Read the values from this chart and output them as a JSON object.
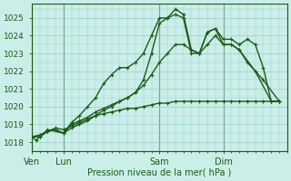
{
  "xlabel": "Pression niveau de la mer( hPa )",
  "bg_color": "#cceee8",
  "grid_color": "#99cccc",
  "line_color": "#1a5c1a",
  "ylim": [
    1017.5,
    1025.8
  ],
  "xtick_labels": [
    "Ven",
    "Lun",
    "Sam",
    "Dim"
  ],
  "xtick_positions": [
    0,
    2,
    8,
    12
  ],
  "vlines": [
    0,
    2,
    8,
    12
  ],
  "xlim": [
    0,
    16
  ],
  "series": [
    {
      "x": [
        0,
        0.3,
        0.5,
        1.0,
        2.0,
        2.5,
        3.0,
        3.5,
        4.0,
        4.5,
        5.0,
        5.5,
        6.0,
        6.5,
        7.0,
        7.5,
        8.0,
        8.5,
        9.0,
        9.5,
        10.0,
        10.5,
        11.0,
        11.5,
        12.0,
        12.5,
        13.0,
        13.5,
        14.0,
        14.5,
        15.0,
        15.5
      ],
      "y": [
        1018.3,
        1018.1,
        1018.3,
        1018.7,
        1018.5,
        1019.1,
        1019.5,
        1020.0,
        1020.5,
        1021.3,
        1021.8,
        1022.2,
        1022.2,
        1022.5,
        1023.0,
        1024.0,
        1025.0,
        1025.0,
        1025.5,
        1025.2,
        1023.2,
        1023.0,
        1024.2,
        1024.4,
        1023.8,
        1023.8,
        1023.5,
        1023.8,
        1023.5,
        1022.2,
        1020.3,
        1020.3
      ],
      "linewidth": 1.0,
      "markersize": 2.5,
      "marker": "+"
    },
    {
      "x": [
        0,
        0.5,
        1.0,
        1.5,
        2.0,
        2.5,
        3.0,
        3.5,
        4.0,
        4.5,
        5.0,
        5.5,
        6.0,
        6.5,
        7.0,
        7.5,
        8.0,
        8.5,
        9.0,
        9.5,
        10.0,
        10.5,
        11.0,
        11.5,
        12.0,
        12.5,
        13.0,
        14.0,
        15.0,
        15.5
      ],
      "y": [
        1018.3,
        1018.3,
        1018.6,
        1018.7,
        1018.5,
        1018.8,
        1019.0,
        1019.2,
        1019.5,
        1019.8,
        1020.0,
        1020.3,
        1020.5,
        1020.8,
        1021.5,
        1023.0,
        1024.7,
        1025.0,
        1025.2,
        1025.0,
        1023.0,
        1023.0,
        1024.2,
        1024.4,
        1023.5,
        1023.5,
        1023.2,
        1022.0,
        1020.3,
        1020.3
      ],
      "linewidth": 1.0,
      "markersize": 2.5,
      "marker": "+"
    },
    {
      "x": [
        0,
        0.5,
        1.0,
        1.5,
        2.0,
        2.5,
        3.0,
        3.5,
        4.0,
        4.5,
        5.0,
        5.5,
        6.0,
        6.5,
        7.0,
        7.5,
        8.0,
        8.5,
        9.0,
        9.5,
        10.0,
        10.5,
        11.0,
        11.5,
        12.0,
        12.5,
        13.0,
        13.5,
        14.0,
        14.5,
        15.5
      ],
      "y": [
        1018.3,
        1018.3,
        1018.6,
        1018.7,
        1018.5,
        1019.0,
        1019.2,
        1019.4,
        1019.7,
        1019.9,
        1020.1,
        1020.3,
        1020.5,
        1020.8,
        1021.2,
        1021.8,
        1022.5,
        1023.0,
        1023.5,
        1023.5,
        1023.2,
        1023.0,
        1023.5,
        1024.0,
        1023.5,
        1023.5,
        1023.2,
        1022.5,
        1022.0,
        1021.5,
        1020.3
      ],
      "linewidth": 1.0,
      "markersize": 2.5,
      "marker": "+"
    },
    {
      "x": [
        0,
        0.5,
        1.0,
        1.5,
        2.0,
        2.5,
        3.0,
        3.5,
        4.0,
        4.5,
        5.0,
        5.5,
        6.0,
        6.5,
        7.0,
        7.5,
        8.0,
        8.5,
        9.0,
        9.5,
        10.0,
        10.5,
        11.0,
        11.5,
        12.0,
        12.5,
        13.0,
        13.5,
        14.0,
        14.5,
        15.0,
        15.5
      ],
      "y": [
        1018.3,
        1018.4,
        1018.6,
        1018.8,
        1018.7,
        1018.9,
        1019.1,
        1019.3,
        1019.5,
        1019.6,
        1019.7,
        1019.8,
        1019.9,
        1019.9,
        1020.0,
        1020.1,
        1020.2,
        1020.2,
        1020.3,
        1020.3,
        1020.3,
        1020.3,
        1020.3,
        1020.3,
        1020.3,
        1020.3,
        1020.3,
        1020.3,
        1020.3,
        1020.3,
        1020.3,
        1020.3
      ],
      "linewidth": 1.0,
      "markersize": 2.5,
      "marker": "+"
    }
  ]
}
